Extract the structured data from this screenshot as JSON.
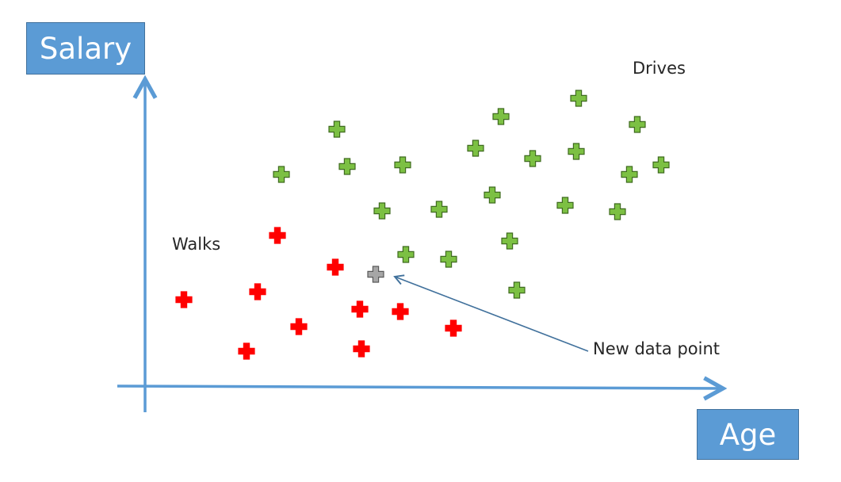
{
  "labels": {
    "y_axis": "Salary",
    "x_axis": "Age",
    "drives": "Drives",
    "walks": "Walks",
    "new_point": "New data point"
  },
  "colors": {
    "axis": "#5b9bd5",
    "drives": "#7cc043",
    "walks": "#ff0000",
    "new_point": "#a6a6a6",
    "arrow": "#41719c"
  },
  "chart_data": {
    "type": "scatter",
    "xlabel": "Age",
    "ylabel": "Salary",
    "grid": false,
    "series": [
      {
        "name": "Drives",
        "marker": "plus",
        "color": "#7cc043",
        "points": [
          [
            355,
            220
          ],
          [
            425,
            163
          ],
          [
            438,
            210
          ],
          [
            508,
            208
          ],
          [
            482,
            266
          ],
          [
            554,
            264
          ],
          [
            512,
            321
          ],
          [
            566,
            327
          ],
          [
            600,
            187
          ],
          [
            632,
            147
          ],
          [
            621,
            246
          ],
          [
            672,
            200
          ],
          [
            643,
            304
          ],
          [
            652,
            366
          ],
          [
            730,
            124
          ],
          [
            727,
            191
          ],
          [
            713,
            259
          ],
          [
            804,
            157
          ],
          [
            794,
            220
          ],
          [
            834,
            208
          ],
          [
            779,
            267
          ]
        ]
      },
      {
        "name": "Walks",
        "marker": "plus",
        "color": "#ff0000",
        "points": [
          [
            232,
            378
          ],
          [
            325,
            368
          ],
          [
            350,
            297
          ],
          [
            423,
            337
          ],
          [
            377,
            412
          ],
          [
            311,
            443
          ],
          [
            454,
            390
          ],
          [
            505,
            393
          ],
          [
            456,
            440
          ],
          [
            572,
            414
          ]
        ]
      },
      {
        "name": "New data point",
        "marker": "plus",
        "color": "#a6a6a6",
        "points": [
          [
            474,
            346
          ]
        ]
      }
    ]
  }
}
